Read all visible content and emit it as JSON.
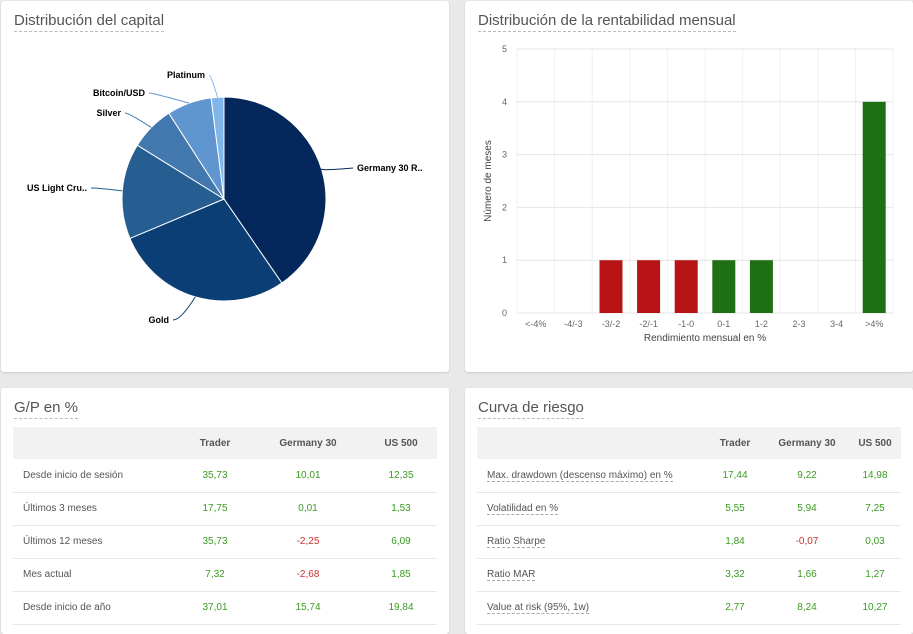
{
  "capital": {
    "title": "Distribución del capital",
    "chart_data": {
      "type": "pie",
      "categories": [
        "Germany 30 R..",
        "Gold",
        "US Light Cru..",
        "Silver",
        "Bitcoin/USD",
        "Platinum"
      ],
      "values": [
        40,
        28,
        15,
        7,
        7,
        2
      ],
      "colors": [
        "#04285b",
        "#0b3e74",
        "#275e92",
        "#4378ae",
        "#5f96cf",
        "#80b7ea"
      ]
    }
  },
  "rent": {
    "title": "Distribución de la rentabilidad mensual",
    "chart_data": {
      "type": "bar",
      "categories": [
        "<-4%",
        "-4/-3",
        "-3/-2",
        "-2/-1",
        "-1-0",
        "0-1",
        "1-2",
        "2-3",
        "3-4",
        ">4%"
      ],
      "values": [
        0,
        0,
        1,
        1,
        1,
        1,
        1,
        0,
        0,
        4
      ],
      "colors": [
        "#b81415",
        "#b81415",
        "#b81415",
        "#b81415",
        "#b81415",
        "#1f6f14",
        "#1f6f14",
        "#1f6f14",
        "#1f6f14",
        "#1f6f14"
      ],
      "ylim": [
        0,
        5
      ],
      "yticks": [
        "0",
        "1",
        "2",
        "3",
        "4",
        "5"
      ],
      "xlabel": "Rendimiento mensual en %",
      "ylabel": "Número de meses",
      "grid": true
    }
  },
  "gp": {
    "title": "G/P en %",
    "headers": [
      "",
      "Trader",
      "Germany 30",
      "US 500"
    ],
    "rows": [
      {
        "label": "Desde inicio de sesión",
        "trader": "35,73",
        "g30": "10,01",
        "us500": "12,35"
      },
      {
        "label": "Últimos 3 meses",
        "trader": "17,75",
        "g30": "0,01",
        "us500": "1,53"
      },
      {
        "label": "Últimos 12 meses",
        "trader": "35,73",
        "g30": "-2,25",
        "us500": "6,09"
      },
      {
        "label": "Mes actual",
        "trader": "7,32",
        "g30": "-2,68",
        "us500": "1,85"
      },
      {
        "label": "Desde inicio de año",
        "trader": "37,01",
        "g30": "15,74",
        "us500": "19,84"
      }
    ]
  },
  "risk": {
    "title": "Curva de riesgo",
    "headers": [
      "",
      "Trader",
      "Germany 30",
      "US 500"
    ],
    "rows": [
      {
        "label": "Max. drawdown (descenso máximo) en %",
        "trader": "17,44",
        "g30": "9,22",
        "us500": "14,98"
      },
      {
        "label": "Volatilidad en %",
        "trader": "5,55",
        "g30": "5,94",
        "us500": "7,25"
      },
      {
        "label": "Ratio Sharpe",
        "trader": "1,84",
        "g30": "-0,07",
        "us500": "0,03"
      },
      {
        "label": "Ratio MAR",
        "trader": "3,32",
        "g30": "1,66",
        "us500": "1,27"
      },
      {
        "label": "Value at risk (95%, 1w)",
        "trader": "2,77",
        "g30": "8,24",
        "us500": "10,27"
      }
    ]
  }
}
